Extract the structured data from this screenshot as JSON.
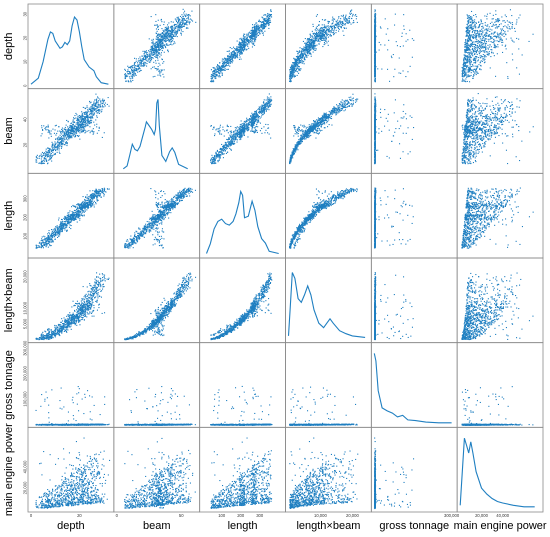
{
  "chart_data": {
    "type": "scatter",
    "kind": "scatter-matrix",
    "variables": [
      "depth",
      "beam",
      "length",
      "length×beam",
      "gross tonnage",
      "main engine power"
    ],
    "diagonal": "kde",
    "colors": {
      "points": "#1f7fc1",
      "frame": "#8a8a8a"
    },
    "grid": false,
    "ranges": {
      "depth": [
        0,
        33
      ],
      "beam": [
        0,
        62
      ],
      "length": [
        0,
        420
      ],
      "length×beam": [
        0,
        25000
      ],
      "gross tonnage": [
        0,
        310000
      ],
      "main engine power": [
        0,
        75000
      ]
    },
    "y_ticks": {
      "depth": [
        "0",
        "10",
        "20",
        "30"
      ],
      "beam": [
        "20",
        "40"
      ],
      "length": [
        "100",
        "200",
        "300"
      ],
      "length×beam": [
        "5,000",
        "10,000",
        "20,000"
      ],
      "gross tonnage": [
        "100,000",
        "200,000",
        "300,000"
      ],
      "main engine power": [
        "20,000",
        "40,000"
      ]
    },
    "x_ticks": {
      "depth": [
        "0",
        "20"
      ],
      "beam": [
        "0",
        "50"
      ],
      "length": [
        "100",
        "200",
        "300"
      ],
      "length×beam": [
        "10,000",
        "20,000"
      ],
      "gross tonnage": [
        "300,000"
      ],
      "main engine power": [
        "20,000",
        "40,000"
      ]
    },
    "kde_shapes": {
      "depth": [
        [
          0,
          0.02
        ],
        [
          3,
          0.1
        ],
        [
          5,
          0.32
        ],
        [
          7,
          0.62
        ],
        [
          8,
          0.72
        ],
        [
          9,
          0.7
        ],
        [
          10,
          0.6
        ],
        [
          11,
          0.55
        ],
        [
          12,
          0.5
        ],
        [
          13,
          0.52
        ],
        [
          14,
          0.58
        ],
        [
          15,
          0.55
        ],
        [
          16,
          0.6
        ],
        [
          17,
          0.8
        ],
        [
          18,
          0.92
        ],
        [
          19,
          0.88
        ],
        [
          20,
          0.72
        ],
        [
          21,
          0.52
        ],
        [
          22,
          0.35
        ],
        [
          24,
          0.25
        ],
        [
          26,
          0.2
        ],
        [
          27,
          0.12
        ],
        [
          29,
          0.04
        ],
        [
          32,
          0.02
        ]
      ],
      "beam": [
        [
          5,
          0.02
        ],
        [
          8,
          0.06
        ],
        [
          10,
          0.2
        ],
        [
          12,
          0.35
        ],
        [
          14,
          0.28
        ],
        [
          16,
          0.26
        ],
        [
          18,
          0.32
        ],
        [
          20,
          0.45
        ],
        [
          22,
          0.58
        ],
        [
          23,
          0.65
        ],
        [
          25,
          0.6
        ],
        [
          27,
          0.55
        ],
        [
          29,
          0.48
        ],
        [
          30,
          0.55
        ],
        [
          31,
          0.9
        ],
        [
          32,
          0.95
        ],
        [
          33,
          0.6
        ],
        [
          35,
          0.2
        ],
        [
          38,
          0.12
        ],
        [
          41,
          0.25
        ],
        [
          43,
          0.3
        ],
        [
          45,
          0.24
        ],
        [
          48,
          0.08
        ],
        [
          55,
          0.02
        ]
      ],
      "length": [
        [
          20,
          0.02
        ],
        [
          40,
          0.15
        ],
        [
          60,
          0.35
        ],
        [
          80,
          0.45
        ],
        [
          100,
          0.48
        ],
        [
          120,
          0.42
        ],
        [
          140,
          0.4
        ],
        [
          160,
          0.45
        ],
        [
          175,
          0.55
        ],
        [
          190,
          0.7
        ],
        [
          200,
          0.85
        ],
        [
          210,
          0.8
        ],
        [
          220,
          0.5
        ],
        [
          240,
          0.52
        ],
        [
          250,
          0.62
        ],
        [
          260,
          0.72
        ],
        [
          275,
          0.6
        ],
        [
          290,
          0.38
        ],
        [
          310,
          0.22
        ],
        [
          330,
          0.16
        ],
        [
          350,
          0.05
        ],
        [
          400,
          0.02
        ]
      ],
      "length×beam": [
        [
          0,
          0.05
        ],
        [
          500,
          0.4
        ],
        [
          1200,
          0.9
        ],
        [
          2000,
          0.82
        ],
        [
          3000,
          0.55
        ],
        [
          4000,
          0.5
        ],
        [
          5000,
          0.6
        ],
        [
          6000,
          0.72
        ],
        [
          7000,
          0.6
        ],
        [
          8000,
          0.4
        ],
        [
          9500,
          0.22
        ],
        [
          11000,
          0.16
        ],
        [
          12000,
          0.22
        ],
        [
          13000,
          0.28
        ],
        [
          14000,
          0.22
        ],
        [
          16000,
          0.12
        ],
        [
          18000,
          0.08
        ],
        [
          20000,
          0.05
        ],
        [
          22000,
          0.04
        ],
        [
          24000,
          0.03
        ]
      ],
      "gross tonnage": [
        [
          0,
          0.95
        ],
        [
          6000,
          0.85
        ],
        [
          15000,
          0.45
        ],
        [
          30000,
          0.22
        ],
        [
          50000,
          0.18
        ],
        [
          70000,
          0.15
        ],
        [
          90000,
          0.1
        ],
        [
          110000,
          0.12
        ],
        [
          130000,
          0.06
        ],
        [
          160000,
          0.05
        ],
        [
          200000,
          0.03
        ],
        [
          250000,
          0.02
        ],
        [
          300000,
          0.02
        ]
      ],
      "main engine power": [
        [
          0,
          0.05
        ],
        [
          2000,
          0.5
        ],
        [
          4000,
          0.95
        ],
        [
          6000,
          0.85
        ],
        [
          8000,
          0.75
        ],
        [
          10000,
          0.9
        ],
        [
          12000,
          0.75
        ],
        [
          15000,
          0.5
        ],
        [
          20000,
          0.28
        ],
        [
          25000,
          0.2
        ],
        [
          30000,
          0.14
        ],
        [
          35000,
          0.1
        ],
        [
          40000,
          0.08
        ],
        [
          50000,
          0.05
        ],
        [
          60000,
          0.03
        ],
        [
          70000,
          0.03
        ]
      ]
    }
  }
}
